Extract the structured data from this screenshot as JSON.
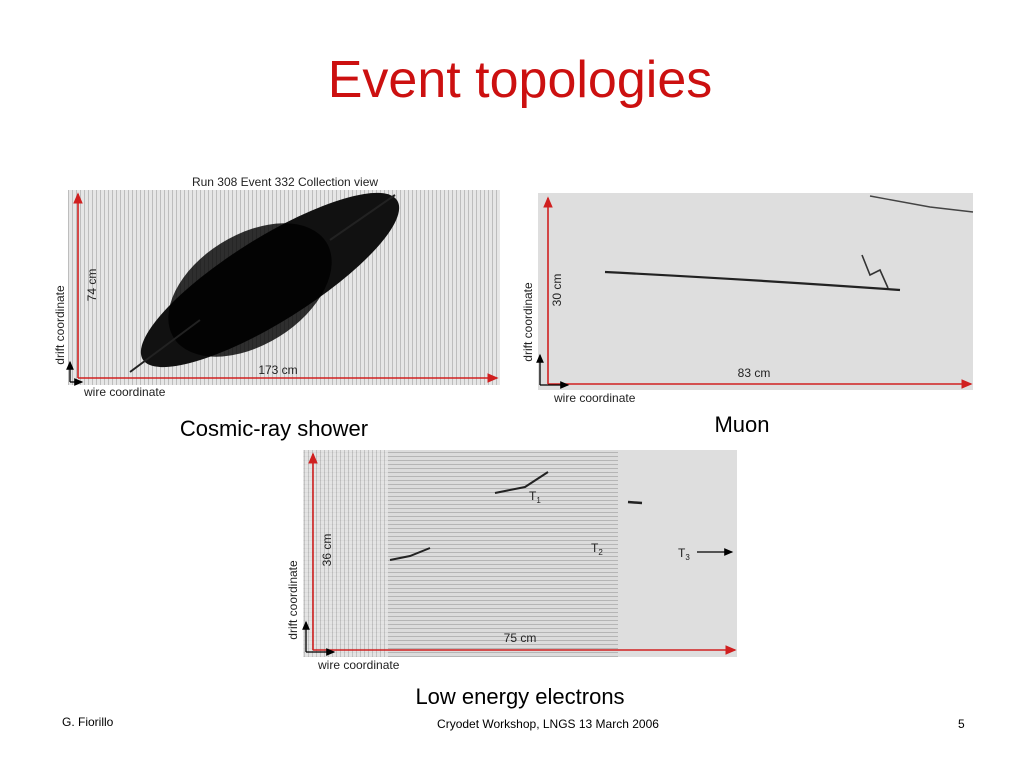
{
  "header": {
    "title": "Event topologies"
  },
  "panels": [
    {
      "heading": "Run 308 Event 332 Collection view",
      "vertical_scale": "74 cm",
      "vertical_axis": "drift coordinate",
      "horizontal_scale": "173 cm",
      "horizontal_axis": "wire coordinate",
      "caption": "Cosmic-ray shower"
    },
    {
      "vertical_scale": "30 cm",
      "vertical_axis": "drift coordinate",
      "horizontal_scale": "83 cm",
      "horizontal_axis": "wire coordinate",
      "caption": "Muon"
    },
    {
      "vertical_scale": "36 cm",
      "vertical_axis": "drift coordinate",
      "horizontal_scale": "75 cm",
      "horizontal_axis": "wire coordinate",
      "caption": "Low energy electrons",
      "track_labels": [
        {
          "letter": "T",
          "sub": "1"
        },
        {
          "letter": "T",
          "sub": "2"
        },
        {
          "letter": "T",
          "sub": "3"
        }
      ]
    }
  ],
  "footer": {
    "author": "G. Fiorillo",
    "event": "Cryodet Workshop, LNGS 13 March 2006",
    "page": "5"
  }
}
